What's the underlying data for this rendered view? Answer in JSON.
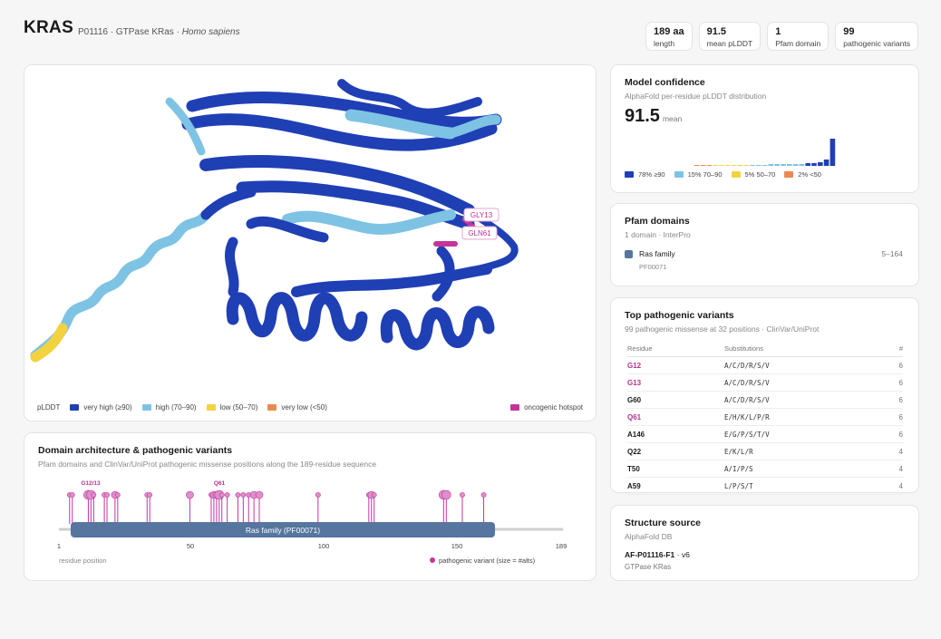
{
  "header": {
    "gene": "KRAS",
    "accession_line": "P01116 · GTPase KRas · ",
    "organism": "Homo sapiens",
    "stats": [
      {
        "value": "189 aa",
        "label": "length"
      },
      {
        "value": "91.5",
        "label": "mean pLDDT"
      },
      {
        "value": "1",
        "label": "Pfam domain"
      },
      {
        "value": "99",
        "label": "pathogenic variants"
      }
    ]
  },
  "structure": {
    "labels": {
      "gly13": "GLY13",
      "gln61": "GLN61"
    },
    "legend": {
      "title": "pLDDT",
      "items": [
        {
          "label": "very high (≥90)",
          "color": "#1f3fb5"
        },
        {
          "label": "high (70–90)",
          "color": "#7ec3e3"
        },
        {
          "label": "low (50–70)",
          "color": "#f2d33f"
        },
        {
          "label": "very low (<50)",
          "color": "#eb8a50"
        }
      ],
      "hotspot": {
        "label": "oncogenic hotspot",
        "color": "#c4359b"
      }
    }
  },
  "domain_arch": {
    "title": "Domain architecture & pathogenic variants",
    "subtitle": "Pfam domains and ClinVar/UniProt pathogenic missense positions along the 189-residue sequence",
    "domain_label": "Ras family (PF00071)",
    "ticks": [
      "1",
      "50",
      "100",
      "150",
      "189"
    ],
    "axis_label": "residue position",
    "legend": "pathogenic variant (size = #alts)",
    "hotspot_labels": [
      "G12/13",
      "Q61"
    ]
  },
  "confidence": {
    "title": "Model confidence",
    "subtitle": "AlphaFold per-residue pLDDT distribution",
    "value": "91.5",
    "value_label": "mean",
    "legend": [
      {
        "label": "78% ≥90",
        "color": "#1f3fb5"
      },
      {
        "label": "15% 70–90",
        "color": "#7ec3e3"
      },
      {
        "label": "5% 50–70",
        "color": "#f2d33f"
      },
      {
        "label": "2% <50",
        "color": "#eb8a50"
      }
    ]
  },
  "pfam": {
    "title": "Pfam domains",
    "subtitle": "1 domain · InterPro",
    "domain_name": "Ras family",
    "domain_range": "5–164",
    "domain_id": "PF00071",
    "domain_color": "#56759f"
  },
  "variants": {
    "title": "Top pathogenic variants",
    "subtitle": "99 pathogenic missense at 32 positions · ClinVar/UniProt",
    "headers": {
      "residue": "Residue",
      "subs": "Substitutions",
      "count": "#"
    },
    "rows": [
      {
        "residue": "G12",
        "subs": "A/C/D/R/S/V",
        "count": "6",
        "hotspot": true
      },
      {
        "residue": "G13",
        "subs": "A/C/D/R/S/V",
        "count": "6",
        "hotspot": true
      },
      {
        "residue": "G60",
        "subs": "A/C/D/R/S/V",
        "count": "6",
        "hotspot": false
      },
      {
        "residue": "Q61",
        "subs": "E/H/K/L/P/R",
        "count": "6",
        "hotspot": true
      },
      {
        "residue": "A146",
        "subs": "E/G/P/S/T/V",
        "count": "6",
        "hotspot": false
      },
      {
        "residue": "Q22",
        "subs": "E/K/L/R",
        "count": "4",
        "hotspot": false
      },
      {
        "residue": "T50",
        "subs": "A/I/P/S",
        "count": "4",
        "hotspot": false
      },
      {
        "residue": "A59",
        "subs": "L/P/S/T",
        "count": "4",
        "hotspot": false
      }
    ]
  },
  "source": {
    "title": "Structure source",
    "subtitle": "AlphaFold DB",
    "model_id": "AF-P01116-F1",
    "version": " · v6",
    "protein": "GTPase KRas"
  }
}
